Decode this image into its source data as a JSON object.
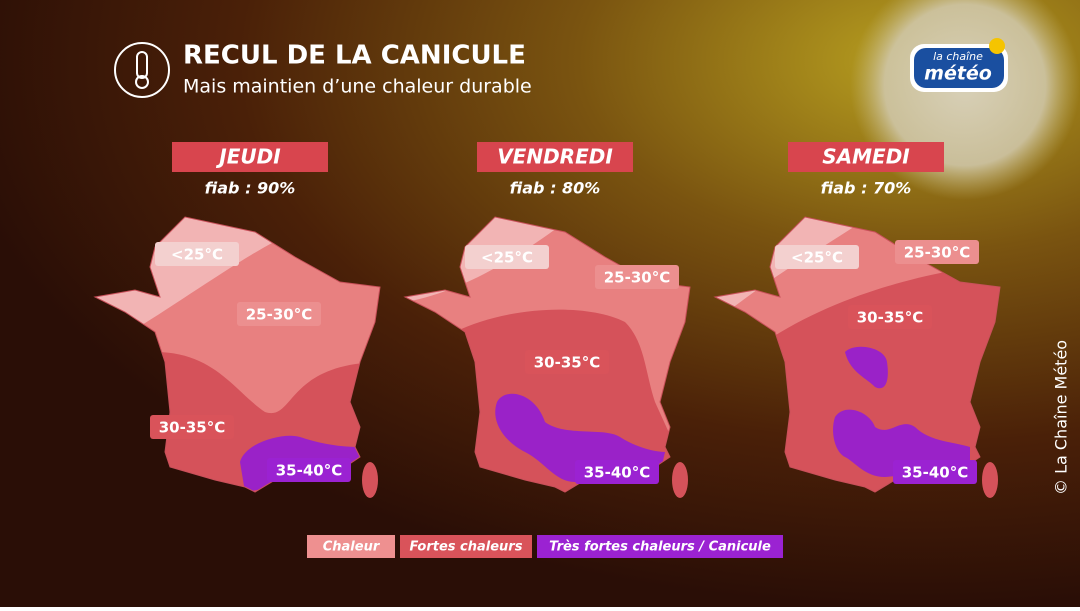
{
  "header": {
    "title": "RECUL DE LA CANICULE",
    "subtitle": "Mais maintien d’une chaleur durable"
  },
  "logo": {
    "line1": "la chaîne",
    "line2": "météo"
  },
  "maps": [
    {
      "day": "JEUDI",
      "reliability": "fiab : 90%",
      "labels": [
        "<25°C",
        "25-30°C",
        "30-35°C",
        "35-40°C"
      ]
    },
    {
      "day": "VENDREDI",
      "reliability": "fiab : 80%",
      "labels": [
        "<25°C",
        "25-30°C",
        "30-35°C",
        "35-40°C"
      ]
    },
    {
      "day": "SAMEDI",
      "reliability": "fiab : 70%",
      "labels": [
        "<25°C",
        "25-30°C",
        "30-35°C",
        "35-40°C"
      ]
    }
  ],
  "legend": [
    "Chaleur",
    "Fortes chaleurs",
    "Très fortes chaleurs / Canicule"
  ],
  "credit": "© La Chaîne Météo"
}
